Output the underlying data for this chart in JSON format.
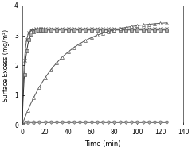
{
  "title": "",
  "xlabel": "Time (min)",
  "ylabel": "Surface Excess (mg/m²)",
  "xlim": [
    0,
    140
  ],
  "ylim": [
    0,
    4
  ],
  "yticks": [
    0,
    1,
    2,
    3,
    4
  ],
  "xticks": [
    0,
    20,
    40,
    60,
    80,
    100,
    120,
    140
  ],
  "series": {
    "x_series": {
      "marker": "x",
      "color": "#555555",
      "plateau": 3.22,
      "k": 0.55
    },
    "square_series": {
      "marker": "s",
      "color": "#555555",
      "plateau": 3.18,
      "k": 0.4
    },
    "tri_series": {
      "marker": "^",
      "color": "#555555",
      "plateau": 3.1,
      "k": 0.038
    },
    "circle_series": {
      "marker": "o",
      "color": "#888888",
      "plateau": 0.1,
      "k": 0.5
    },
    "diamond_series": {
      "marker": "D",
      "color": "#888888",
      "plateau": 0.07,
      "k": 0.5
    }
  },
  "t_dense": [
    0,
    1,
    2,
    3,
    4,
    5,
    6,
    7,
    8,
    9,
    10,
    11,
    12,
    13,
    14,
    15,
    16,
    17,
    18,
    19,
    20,
    22,
    24,
    26,
    28,
    30,
    35,
    40,
    45,
    50,
    55,
    60,
    65,
    70,
    75,
    80,
    85,
    90,
    95,
    100,
    105,
    110,
    115,
    120,
    125
  ],
  "t_sparse": [
    0,
    5,
    10,
    15,
    20,
    25,
    30,
    35,
    40,
    45,
    50,
    55,
    60,
    65,
    70,
    75,
    80,
    85,
    90,
    95,
    100,
    105,
    110,
    115,
    120,
    125
  ],
  "background_color": "#ffffff"
}
